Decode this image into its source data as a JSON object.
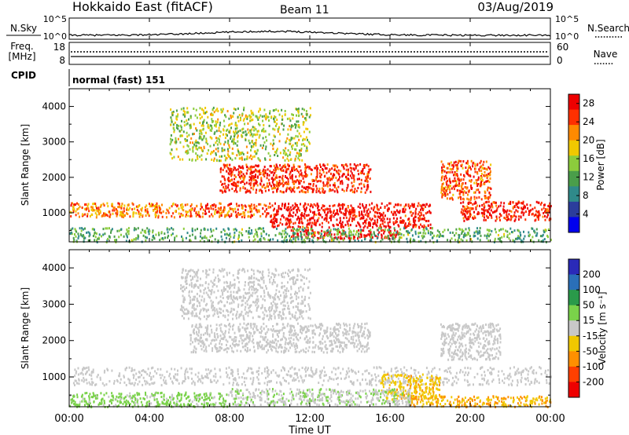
{
  "header": {
    "station": "Hokkaido East (fitACF)",
    "beam": "Beam 11",
    "date": "03/Aug/2019"
  },
  "noise_panel": {
    "left_label": "N.Sky",
    "left_ticks": [
      "10^5",
      "10^0"
    ],
    "right_ticks": [
      "10^5",
      "10^0"
    ],
    "right_label": "N.Search"
  },
  "freq_panel": {
    "left_label_1": "Freq.",
    "left_label_2": "[MHz]",
    "left_ticks": [
      "18",
      "8"
    ],
    "right_ticks": [
      "60",
      "0"
    ],
    "right_label": "Nave"
  },
  "cpid_panel": {
    "label": "CPID",
    "program": "normal (fast) 151"
  },
  "colors": {
    "scale_power": [
      "#0000ee",
      "#2b3d9c",
      "#2f8a8a",
      "#4a9e4a",
      "#8ccc3c",
      "#f0c800",
      "#ff8a00",
      "#ff3000",
      "#ee0000"
    ],
    "scale_velocity": [
      "#2a2ab8",
      "#2a6fb8",
      "#2a9a4a",
      "#7ad24a",
      "#c8c8c8",
      "#f0c800",
      "#ff9000",
      "#ff4000",
      "#ee0000"
    ],
    "ground_scatter": "#c8c8c8"
  },
  "chart_data": [
    {
      "type": "heatmap",
      "title": "",
      "xlabel": "Time UT",
      "ylabel": "Slant Range [km]",
      "xlim": [
        "00:00",
        "24:00"
      ],
      "ylim": [
        180,
        4500
      ],
      "x_ticks": [
        "00:00",
        "04:00",
        "08:00",
        "12:00",
        "16:00",
        "20:00",
        "00:00"
      ],
      "y_ticks": [
        "1000",
        "2000",
        "3000",
        "4000"
      ],
      "colorbar": {
        "label": "Power [dB]",
        "ticks": [
          "4",
          "8",
          "12",
          "16",
          "20",
          "24",
          "28"
        ],
        "range": [
          0,
          30
        ]
      },
      "regions": [
        {
          "t0": 0.0,
          "t1": 6.0,
          "r0": 900,
          "r1": 1300,
          "value": 22
        },
        {
          "t0": 6.0,
          "t1": 10.0,
          "r0": 900,
          "r1": 1300,
          "value": 24
        },
        {
          "t0": 10.0,
          "t1": 18.0,
          "r0": 600,
          "r1": 1300,
          "value": 28
        },
        {
          "t0": 19.5,
          "t1": 24.0,
          "r0": 800,
          "r1": 1350,
          "value": 27
        },
        {
          "t0": 11.0,
          "t1": 16.5,
          "r0": 300,
          "r1": 550,
          "value": 30
        },
        {
          "t0": 7.5,
          "t1": 15.0,
          "r0": 1600,
          "r1": 2400,
          "value": 26
        },
        {
          "t0": 18.5,
          "t1": 21.0,
          "r0": 1400,
          "r1": 2500,
          "value": 24
        },
        {
          "t0": 5.0,
          "t1": 12.0,
          "r0": 2500,
          "r1": 4000,
          "value": 16
        },
        {
          "t0": 0.0,
          "t1": 24.0,
          "r0": 200,
          "r1": 600,
          "value": 12
        }
      ]
    },
    {
      "type": "heatmap",
      "title": "",
      "xlabel": "Time UT",
      "ylabel": "Slant Range [km]",
      "xlim": [
        "00:00",
        "24:00"
      ],
      "ylim": [
        180,
        4500
      ],
      "x_ticks": [
        "00:00",
        "04:00",
        "08:00",
        "12:00",
        "16:00",
        "20:00",
        "00:00"
      ],
      "y_ticks": [
        "1000",
        "2000",
        "3000",
        "4000"
      ],
      "colorbar": {
        "label": "Velocity [m s⁻¹]",
        "ticks": [
          "200",
          "100",
          "50",
          "15",
          "-15",
          "-50",
          "-100",
          "-200"
        ],
        "range": [
          -250,
          250
        ]
      },
      "regions": [
        {
          "t0": 0.0,
          "t1": 24.0,
          "r0": 800,
          "r1": 1300,
          "value": 0
        },
        {
          "t0": 6.0,
          "t1": 15.0,
          "r0": 1700,
          "r1": 2500,
          "value": 0
        },
        {
          "t0": 18.5,
          "t1": 21.5,
          "r0": 1500,
          "r1": 2500,
          "value": 0
        },
        {
          "t0": 15.5,
          "t1": 18.5,
          "r0": 400,
          "r1": 1100,
          "value": -70
        },
        {
          "t0": 17.0,
          "t1": 24.0,
          "r0": 200,
          "r1": 500,
          "value": -80
        },
        {
          "t0": 0.0,
          "t1": 8.0,
          "r0": 200,
          "r1": 600,
          "value": 40
        },
        {
          "t0": 8.0,
          "t1": 17.0,
          "r0": 250,
          "r1": 700,
          "value": 20
        },
        {
          "t0": 5.5,
          "t1": 12.0,
          "r0": 2600,
          "r1": 4000,
          "value": 5
        }
      ]
    }
  ]
}
